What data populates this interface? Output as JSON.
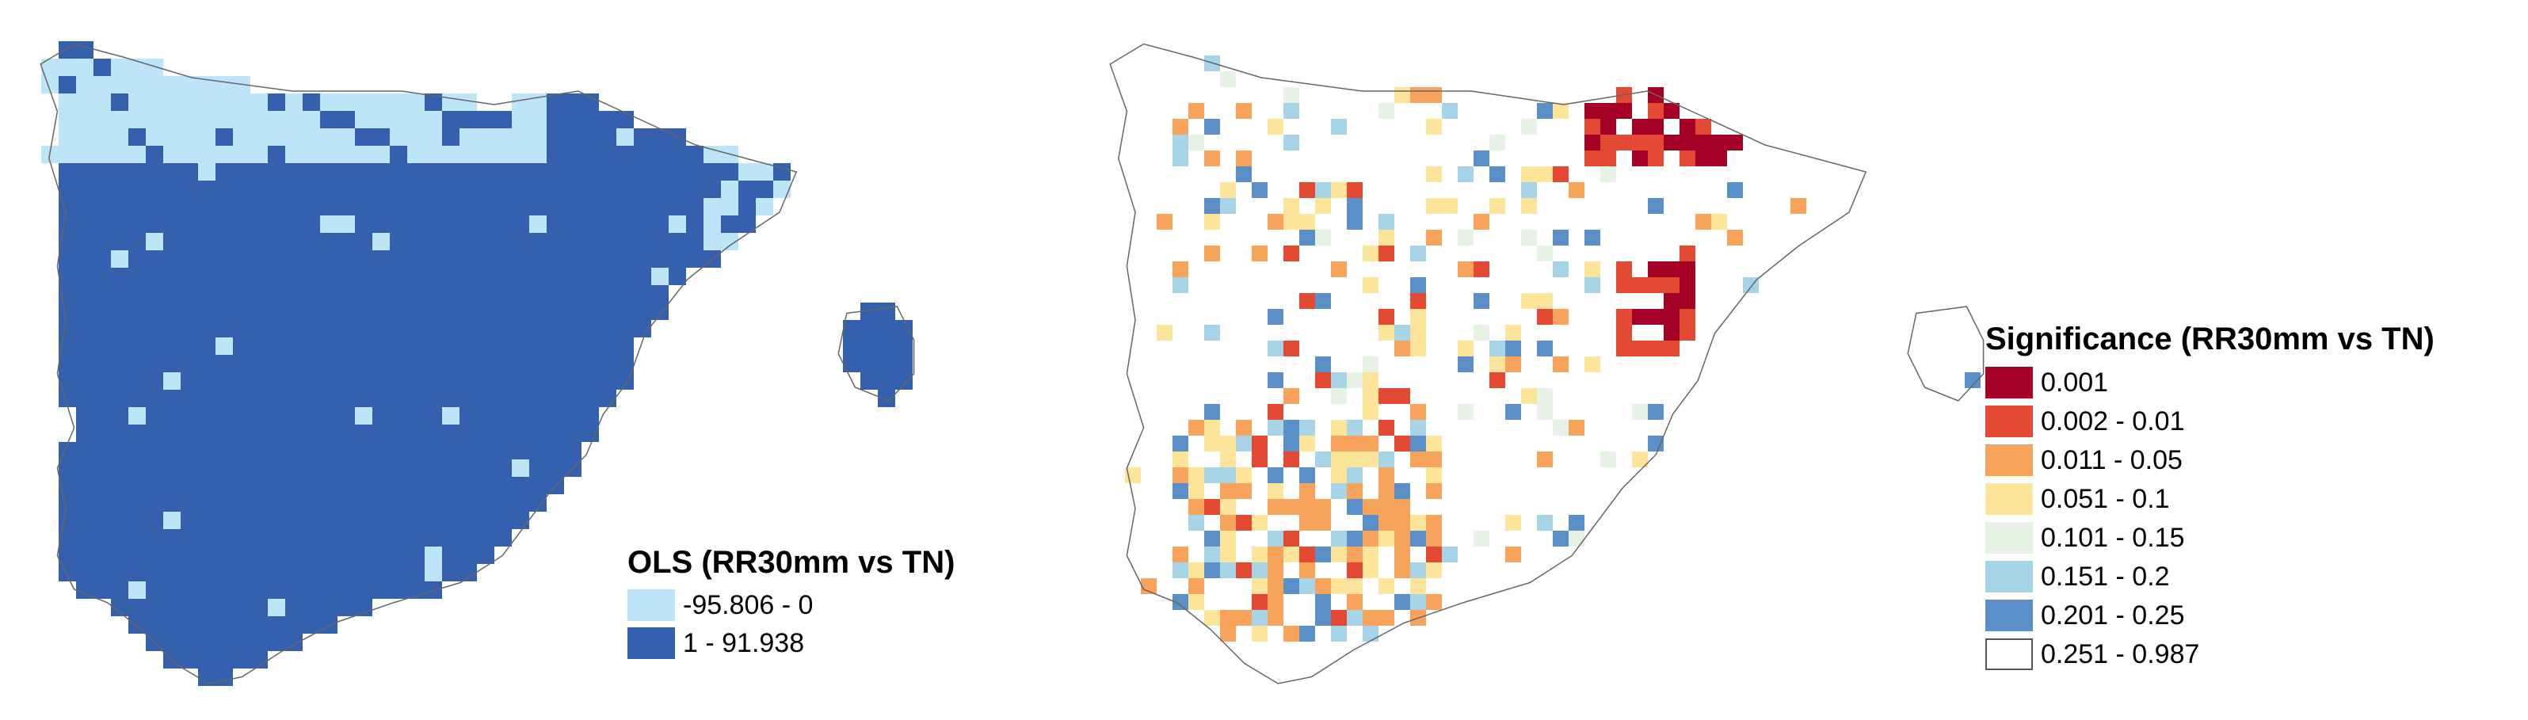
{
  "maps": [
    {
      "id": "ols",
      "legend_title": "OLS (RR30mm vs TN)",
      "classes": [
        {
          "label": "-95.806 - 0",
          "color": "#bde5f7"
        },
        {
          "label": "1 - 91.938",
          "color": "#3560ad"
        }
      ]
    },
    {
      "id": "significance",
      "legend_title": "Significance (RR30mm vs TN)",
      "classes": [
        {
          "label": "0.001",
          "color": "#a50026"
        },
        {
          "label": "0.002 - 0.01",
          "color": "#e34a33"
        },
        {
          "label": "0.011 - 0.05",
          "color": "#f7a35c"
        },
        {
          "label": "0.051 - 0.1",
          "color": "#fce49a"
        },
        {
          "label": "0.101 - 0.15",
          "color": "#e6f2e4"
        },
        {
          "label": "0.151 - 0.2",
          "color": "#a8d4e8"
        },
        {
          "label": "0.201 - 0.25",
          "color": "#5b8fc7"
        },
        {
          "label": "0.251 - 0.987",
          "color": "#ffffff"
        }
      ]
    }
  ]
}
